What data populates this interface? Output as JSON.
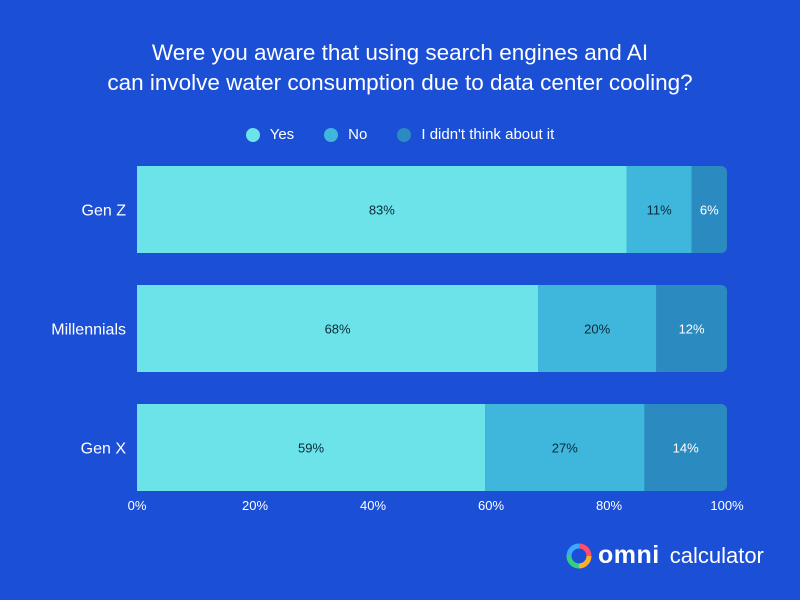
{
  "chart_data": {
    "type": "bar",
    "orientation": "horizontal",
    "stacked": true,
    "title": "Were you aware that using search engines and AI can involve water consumption due to data center cooling?",
    "title_lines": [
      "Were you aware that using search engines and AI",
      "can involve water consumption due to data center cooling?"
    ],
    "categories": [
      "Gen Z",
      "Millennials",
      "Gen X"
    ],
    "series": [
      {
        "name": "Yes",
        "color": "#6be3e8",
        "values": [
          83,
          68,
          59
        ]
      },
      {
        "name": "No",
        "color": "#3fb6db",
        "values": [
          11,
          20,
          27
        ]
      },
      {
        "name": "I didn't think about it",
        "color": "#2b8ac0",
        "values": [
          6,
          12,
          14
        ]
      }
    ],
    "value_labels": [
      [
        "83%",
        "68%",
        "59%"
      ],
      [
        "11%",
        "20%",
        "27%"
      ],
      [
        "6%",
        "12%",
        "14%"
      ]
    ],
    "xlim": [
      0,
      100
    ],
    "x_ticks": [
      "0%",
      "20%",
      "40%",
      "60%",
      "80%",
      "100%"
    ],
    "x_tick_values": [
      0,
      20,
      40,
      60,
      80,
      100
    ],
    "legend_position": "top",
    "grid": false
  },
  "branding": {
    "logo_word": "omni",
    "logo_suffix": "calculator"
  },
  "colors": {
    "background": "#1a4fd6",
    "text": "#ffffff",
    "bar_text": "#0b2a3a"
  }
}
